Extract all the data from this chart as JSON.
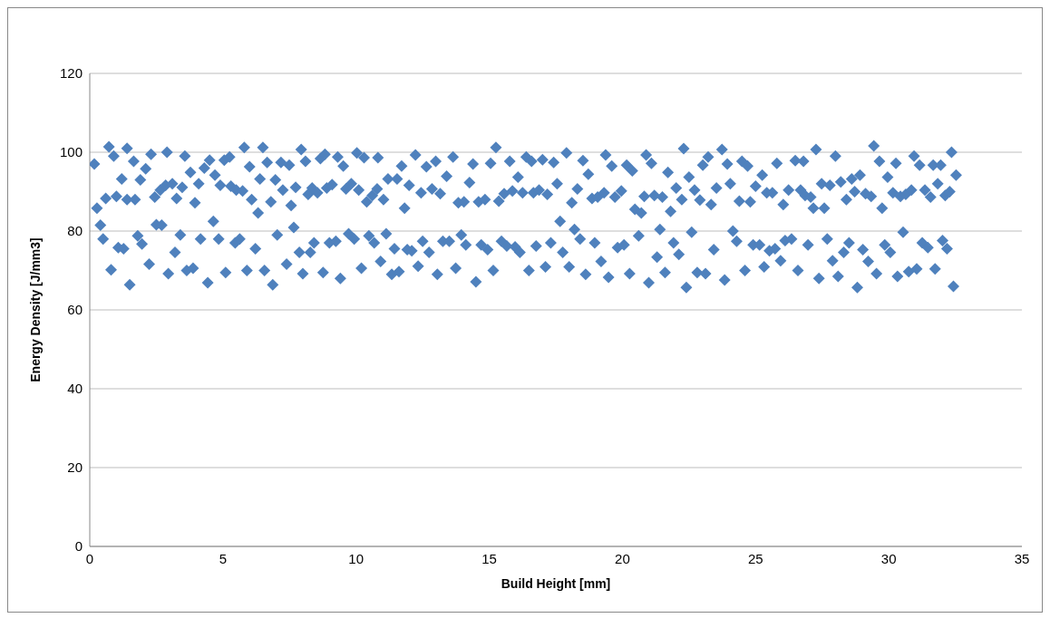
{
  "chart_data": {
    "type": "scatter",
    "xlabel": "Build Height [mm]",
    "ylabel": "Energy Density [J/mm3]",
    "xlim": [
      0,
      35
    ],
    "xticks": [
      0,
      5,
      10,
      15,
      20,
      25,
      30,
      35
    ],
    "ylim": [
      0,
      120
    ],
    "yticks": [
      0,
      20,
      40,
      60,
      80,
      100,
      120
    ],
    "grid": "y",
    "legend": false,
    "marker": "diamond",
    "series": [
      {
        "color": "#4f81bd",
        "x": [
          0.17,
          0.27,
          0.4,
          0.5,
          0.6,
          0.72,
          0.8,
          0.9,
          1.0,
          1.07,
          1.2,
          1.27,
          1.4,
          1.4,
          1.5,
          1.65,
          1.7,
          1.8,
          1.9,
          1.96,
          2.1,
          2.23,
          2.3,
          2.44,
          2.5,
          2.65,
          2.7,
          2.85,
          2.9,
          2.95,
          3.1,
          3.2,
          3.26,
          3.4,
          3.47,
          3.57,
          3.64,
          3.78,
          3.88,
          3.95,
          4.09,
          4.16,
          4.3,
          4.43,
          4.5,
          4.64,
          4.7,
          4.84,
          4.9,
          5.05,
          5.1,
          5.25,
          5.3,
          5.46,
          5.5,
          5.63,
          5.74,
          5.8,
          5.9,
          6.0,
          6.08,
          6.22,
          6.32,
          6.39,
          6.5,
          6.56,
          6.66,
          6.8,
          6.87,
          6.97,
          7.04,
          7.18,
          7.25,
          7.39,
          7.49,
          7.56,
          7.66,
          7.73,
          7.87,
          7.94,
          8.0,
          8.1,
          8.2,
          8.28,
          8.35,
          8.42,
          8.55,
          8.66,
          8.76,
          8.83,
          8.9,
          9.0,
          9.1,
          9.24,
          9.31,
          9.41,
          9.52,
          9.62,
          9.72,
          9.82,
          9.93,
          10.03,
          10.1,
          10.2,
          10.3,
          10.4,
          10.48,
          10.61,
          10.68,
          10.79,
          10.82,
          10.92,
          11.03,
          11.13,
          11.2,
          11.34,
          11.44,
          11.54,
          11.61,
          11.71,
          11.82,
          11.92,
          11.99,
          12.09,
          12.23,
          12.33,
          12.44,
          12.5,
          12.64,
          12.74,
          12.85,
          12.99,
          13.05,
          13.16,
          13.26,
          13.4,
          13.5,
          13.64,
          13.74,
          13.84,
          13.95,
          14.05,
          14.12,
          14.26,
          14.39,
          14.5,
          14.6,
          14.7,
          14.84,
          14.94,
          15.05,
          15.15,
          15.25,
          15.36,
          15.46,
          15.56,
          15.66,
          15.77,
          15.87,
          15.97,
          16.08,
          16.15,
          16.25,
          16.39,
          16.49,
          16.59,
          16.66,
          16.76,
          16.87,
          17.0,
          17.11,
          17.18,
          17.31,
          17.42,
          17.55,
          17.66,
          17.76,
          17.9,
          18.0,
          18.1,
          18.2,
          18.31,
          18.41,
          18.52,
          18.62,
          18.72,
          18.86,
          18.96,
          19.07,
          19.2,
          19.31,
          19.37,
          19.48,
          19.6,
          19.72,
          19.82,
          19.96,
          20.06,
          20.16,
          20.27,
          20.37,
          20.47,
          20.61,
          20.71,
          20.82,
          20.89,
          20.99,
          21.09,
          21.2,
          21.3,
          21.41,
          21.5,
          21.6,
          21.71,
          21.81,
          21.92,
          22.02,
          22.12,
          22.23,
          22.3,
          22.4,
          22.5,
          22.6,
          22.71,
          22.81,
          22.91,
          23.02,
          23.12,
          23.22,
          23.33,
          23.43,
          23.53,
          23.74,
          23.84,
          23.94,
          24.05,
          24.15,
          24.29,
          24.39,
          24.49,
          24.6,
          24.7,
          24.8,
          24.91,
          25.0,
          25.15,
          25.25,
          25.32,
          25.42,
          25.52,
          25.63,
          25.73,
          25.8,
          25.94,
          26.04,
          26.11,
          26.24,
          26.35,
          26.49,
          26.59,
          26.69,
          26.8,
          26.86,
          26.97,
          27.07,
          27.17,
          27.27,
          27.38,
          27.48,
          27.58,
          27.69,
          27.79,
          27.89,
          28.0,
          28.1,
          28.2,
          28.31,
          28.41,
          28.51,
          28.61,
          28.72,
          28.82,
          28.92,
          29.03,
          29.13,
          29.23,
          29.34,
          29.44,
          29.54,
          29.65,
          29.75,
          29.85,
          29.96,
          30.06,
          30.16,
          30.27,
          30.33,
          30.44,
          30.54,
          30.64,
          30.75,
          30.85,
          30.95,
          31.05,
          31.16,
          31.26,
          31.36,
          31.47,
          31.57,
          31.67,
          31.74,
          31.84,
          31.95,
          32.02,
          32.12,
          32.19,
          32.29,
          32.36,
          32.43,
          32.53
        ],
        "values": [
          97,
          85.8,
          81.5,
          78,
          88.3,
          101.4,
          70.2,
          99,
          88.8,
          75.8,
          93.2,
          75.5,
          101,
          88,
          66.4,
          97.7,
          88,
          78.8,
          93,
          76.7,
          95.8,
          71.6,
          99.5,
          88.6,
          81.6,
          90.4,
          81.5,
          91.6,
          100,
          69.2,
          92,
          74.6,
          88.3,
          79,
          91.1,
          99,
          70,
          94.9,
          70.6,
          87.2,
          92,
          78,
          96,
          66.9,
          98,
          82.5,
          94.2,
          78,
          91.6,
          98,
          69.5,
          98.8,
          91.4,
          77,
          90.4,
          78,
          90.2,
          101.2,
          70,
          96.3,
          88,
          75.5,
          84.6,
          93.2,
          101.2,
          70,
          97.4,
          87.4,
          66.4,
          93,
          79,
          97.4,
          90.4,
          71.6,
          96.7,
          86.5,
          80.9,
          91.1,
          74.6,
          100.7,
          69.2,
          97.7,
          89.3,
          74.6,
          90.9,
          77,
          89.7,
          98.4,
          69.5,
          99.5,
          90.9,
          77,
          91.8,
          77.4,
          98.8,
          68,
          96.5,
          90.7,
          79.3,
          92,
          78,
          99.8,
          90.4,
          70.6,
          98.6,
          87.4,
          78.8,
          89,
          77,
          90.7,
          98.6,
          72.3,
          88,
          79.3,
          93.2,
          69,
          75.5,
          93.2,
          69.7,
          96.5,
          85.8,
          75.3,
          91.6,
          75,
          99.3,
          71.1,
          89.7,
          77.4,
          96.3,
          74.6,
          90.7,
          97.7,
          69,
          89.5,
          77.4,
          93.9,
          77.4,
          98.8,
          70.6,
          87.2,
          79,
          87.4,
          76.5,
          92.3,
          97,
          67.1,
          87.4,
          76.5,
          88,
          75.3,
          97.2,
          70,
          101.2,
          87.6,
          77.4,
          89.5,
          76.2,
          97.7,
          90.2,
          76,
          93.7,
          74.6,
          89.7,
          98.8,
          70,
          97.7,
          89.7,
          76.2,
          90.4,
          98.1,
          70.9,
          89.3,
          77,
          97.4,
          92,
          82.5,
          74.6,
          99.8,
          70.9,
          87.2,
          80.4,
          90.7,
          78,
          97.9,
          69,
          94.4,
          88.3,
          77,
          88.6,
          72.3,
          89.7,
          99.3,
          68.3,
          96.5,
          88.6,
          75.8,
          90.2,
          76.5,
          96.7,
          69.2,
          95.3,
          85.5,
          78.8,
          84.6,
          88.8,
          99.3,
          66.9,
          97.2,
          89,
          73.4,
          80.4,
          88.6,
          69.5,
          94.9,
          85,
          77,
          90.9,
          74.1,
          88,
          100.9,
          65.7,
          93.7,
          79.7,
          90.4,
          69.5,
          87.9,
          96.7,
          69.2,
          98.8,
          86.7,
          75.3,
          90.9,
          100.7,
          67.6,
          97,
          92,
          80,
          77.4,
          87.6,
          97.7,
          70,
          96.5,
          87.4,
          76.5,
          91.4,
          76.5,
          94.2,
          70.9,
          89.7,
          75,
          89.7,
          75.5,
          97.2,
          72.5,
          86.7,
          77.6,
          90.4,
          78,
          97.9,
          70,
          90.4,
          97.7,
          89,
          76.5,
          88.6,
          85.8,
          100.7,
          68,
          92,
          85.8,
          78,
          91.6,
          72.5,
          99,
          68.5,
          92.5,
          74.6,
          88,
          77,
          93.2,
          90,
          65.7,
          94.2,
          75.3,
          89.5,
          72.3,
          88.8,
          101.6,
          69.2,
          97.7,
          85.8,
          76.5,
          93.7,
          74.6,
          89.7,
          97.2,
          68.5,
          88.8,
          79.7,
          89.3,
          69.7,
          90.4,
          99,
          70.4,
          96.7,
          77,
          90.4,
          75.8,
          88.6,
          96.7,
          70.4,
          92,
          96.7,
          77.6,
          89,
          75.5,
          90,
          100,
          66,
          94.2
        ]
      }
    ]
  }
}
